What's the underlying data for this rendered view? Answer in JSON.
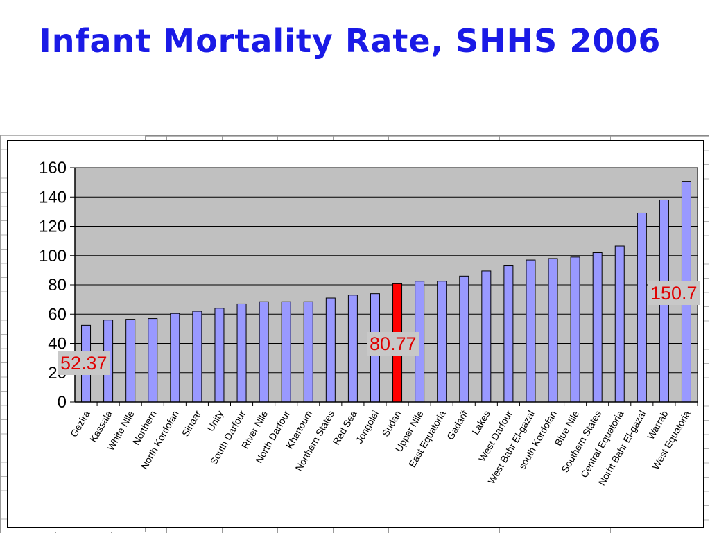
{
  "slide": {
    "title": "Infant Mortality Rate, SHHS 2006"
  },
  "colors": {
    "title": "#1a1ae6",
    "bar": "#9999ff",
    "highlight_bar": "#ff0000",
    "plot_bg": "#c0c0c0",
    "callout_text": "#e00000"
  },
  "chart_data": {
    "type": "bar",
    "title": "",
    "xlabel": "",
    "ylabel": "",
    "ylim": [
      0,
      160
    ],
    "yticks": [
      0,
      20,
      40,
      60,
      80,
      100,
      120,
      140,
      160
    ],
    "grid": true,
    "categories": [
      "Gezira",
      "Kassala",
      "White Nile",
      "Northern",
      "North Kordofan",
      "Sinaar",
      "Unity",
      "South Darfour",
      "River Nile",
      "North Darfour",
      "Khartoum",
      "Northern States",
      "Red Sea",
      "Jongolei",
      "Sudan",
      "Upper Nile",
      "East Equatoria",
      "Gadarif",
      "Lakes",
      "West Darfour",
      "West Bahr El-gazal",
      "south Kordofan",
      "Blue Nile",
      "Southern States",
      "Central Equatoria",
      "Norht Bahr El-gazal",
      "Warrab",
      "West Equatoria"
    ],
    "values": [
      52.37,
      56,
      56.5,
      57,
      60.5,
      62,
      64,
      67,
      68.5,
      68.5,
      68.5,
      71,
      73,
      74,
      80.77,
      82.5,
      82.5,
      86,
      89.5,
      93,
      97,
      98,
      99,
      102,
      106.5,
      129,
      138,
      150.7
    ],
    "highlight_category": "Sudan",
    "data_labels": [
      {
        "category": "Gezira",
        "text": "52.37"
      },
      {
        "category": "Sudan",
        "text": "80.77"
      },
      {
        "category": "West Equatoria",
        "text": "150.7"
      }
    ]
  }
}
